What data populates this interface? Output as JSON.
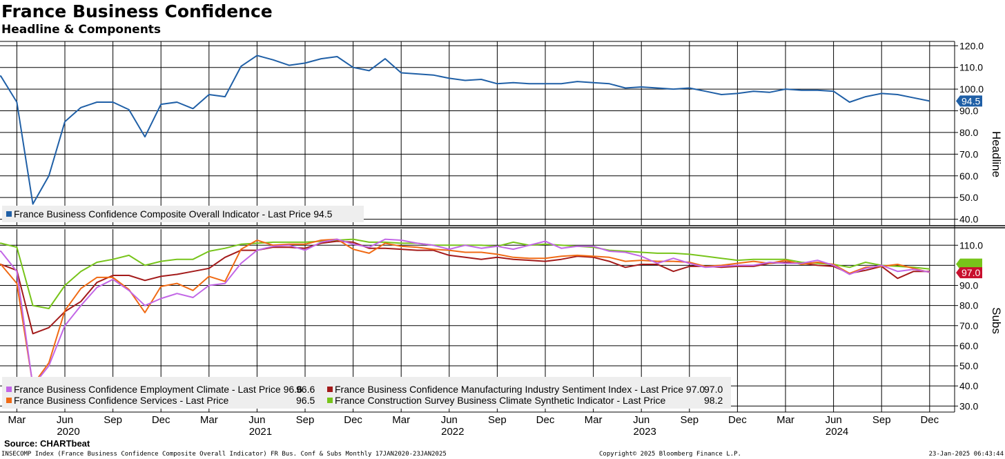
{
  "header": {
    "title": "France Business Confidence",
    "subtitle": "Headline & Components"
  },
  "footer": {
    "source": "Source: CHARTbeat",
    "query": "INSECOMP Index (France Business Confidence Composite Overall Indicator) FR Bus. Conf & Subs  Monthly 17JAN2020-23JAN2025",
    "copyright": "Copyright© 2025 Bloomberg Finance L.P.",
    "timestamp": "23-Jan-2025 06:43:44"
  },
  "chart_data": [
    {
      "type": "line",
      "axis_title": "Headline",
      "axis_side": "right",
      "ylim": [
        37,
        122
      ],
      "yticks": [
        40,
        50,
        60,
        70,
        80,
        90,
        100,
        110,
        120
      ],
      "grid": true,
      "legend": "bottom-left",
      "x": [
        "2020-01",
        "2020-02",
        "2020-03",
        "2020-04",
        "2020-05",
        "2020-06",
        "2020-07",
        "2020-08",
        "2020-09",
        "2020-10",
        "2020-11",
        "2020-12",
        "2021-01",
        "2021-02",
        "2021-03",
        "2021-04",
        "2021-05",
        "2021-06",
        "2021-07",
        "2021-08",
        "2021-09",
        "2021-10",
        "2021-11",
        "2021-12",
        "2022-01",
        "2022-02",
        "2022-03",
        "2022-04",
        "2022-05",
        "2022-06",
        "2022-07",
        "2022-08",
        "2022-09",
        "2022-10",
        "2022-11",
        "2022-12",
        "2023-01",
        "2023-02",
        "2023-03",
        "2023-04",
        "2023-05",
        "2023-06",
        "2023-07",
        "2023-08",
        "2023-09",
        "2023-10",
        "2023-11",
        "2023-12",
        "2024-01",
        "2024-02",
        "2024-03",
        "2024-04",
        "2024-05",
        "2024-06",
        "2024-07",
        "2024-08",
        "2024-09",
        "2024-10",
        "2024-11",
        "2024-12"
      ],
      "series": [
        {
          "name": "France Business Confidence Composite Overall Indicator",
          "last_price_label": "Last Price 94.5",
          "last_value": "94.5",
          "color": "#1f5fa6",
          "values": [
            106.5,
            106.0,
            94.0,
            47.0,
            60.0,
            85.0,
            91.5,
            94.0,
            94.0,
            90.5,
            78.0,
            93.0,
            94.0,
            91.0,
            97.5,
            96.5,
            110.5,
            115.5,
            113.5,
            111.0,
            112.0,
            114.0,
            115.0,
            110.0,
            108.5,
            114.0,
            107.5,
            107.0,
            106.5,
            105.0,
            104.0,
            104.5,
            102.5,
            103.0,
            102.5,
            102.5,
            102.5,
            103.5,
            103.0,
            102.5,
            100.5,
            101.0,
            100.5,
            100.0,
            100.5,
            99.0,
            97.5,
            98.0,
            99.0,
            98.5,
            100.0,
            99.5,
            99.5,
            99.0,
            94.0,
            96.5,
            98.0,
            97.5,
            96.0,
            94.5
          ]
        }
      ]
    },
    {
      "type": "line",
      "axis_title": "Subs",
      "axis_side": "right",
      "ylim": [
        27,
        118
      ],
      "yticks": [
        30,
        40,
        50,
        60,
        70,
        80,
        90,
        110
      ],
      "grid": true,
      "legend": "bottom-left",
      "x_axis_labels": [
        "Mar",
        "Jun",
        "Sep",
        "Dec",
        "Mar",
        "Jun",
        "Sep",
        "Dec",
        "Mar",
        "Jun",
        "Sep",
        "Dec",
        "Mar",
        "Jun",
        "Sep",
        "Dec",
        "Mar",
        "Jun",
        "Sep",
        "Dec"
      ],
      "x_axis_years": [
        "2020",
        "2021",
        "2022",
        "2023",
        "2024"
      ],
      "flag_value": "97.0",
      "series": [
        {
          "name": "France Business Confidence Employment Climate",
          "last_price_label": "Last Price 96.6",
          "last_value": "96.6",
          "color": "#c266e6",
          "values": [
            107.0,
            107.0,
            97.0,
            40.0,
            50.0,
            70.0,
            80.0,
            89.0,
            93.0,
            87.5,
            80.0,
            83.5,
            86.0,
            84.0,
            90.0,
            91.0,
            101.0,
            107.5,
            109.5,
            110.0,
            107.5,
            111.5,
            113.0,
            110.5,
            109.0,
            113.0,
            112.5,
            111.0,
            110.0,
            108.0,
            110.0,
            108.5,
            109.5,
            108.0,
            110.0,
            112.0,
            108.5,
            109.5,
            109.5,
            107.0,
            106.5,
            104.5,
            101.0,
            103.5,
            101.0,
            99.0,
            99.5,
            100.0,
            100.0,
            101.5,
            101.0,
            101.0,
            102.5,
            100.0,
            95.5,
            98.5,
            100.0,
            97.0,
            98.0,
            96.6
          ]
        },
        {
          "name": "France Business Confidence Manufacturing Industry Sentiment Index",
          "last_price_label": "Last Price 97.0",
          "last_value": "97.0",
          "color": "#a31a1a",
          "values": [
            102.0,
            100.5,
            97.5,
            66.0,
            69.0,
            77.0,
            82.0,
            91.5,
            95.0,
            95.0,
            92.5,
            94.5,
            95.5,
            97.0,
            98.5,
            104.0,
            107.5,
            107.5,
            109.0,
            109.0,
            108.5,
            111.0,
            112.0,
            111.5,
            108.5,
            108.5,
            108.0,
            107.5,
            107.5,
            105.0,
            104.0,
            103.0,
            104.0,
            103.0,
            102.5,
            102.0,
            103.0,
            104.5,
            104.0,
            102.0,
            99.0,
            100.5,
            100.5,
            97.0,
            99.5,
            99.5,
            99.0,
            99.5,
            99.5,
            101.0,
            101.5,
            101.0,
            100.0,
            99.5,
            96.0,
            97.5,
            99.5,
            93.5,
            97.0,
            97.0
          ]
        },
        {
          "name": "France Business Confidence Services",
          "last_price_label": "Last Price",
          "last_value": "96.5",
          "color": "#f06a14",
          "values": [
            101.5,
            100.5,
            91.0,
            40.5,
            51.5,
            77.5,
            88.5,
            94.0,
            94.0,
            88.0,
            76.5,
            89.5,
            91.0,
            87.5,
            94.5,
            92.0,
            108.0,
            112.5,
            110.0,
            110.5,
            110.5,
            112.5,
            113.0,
            108.0,
            106.0,
            111.0,
            109.5,
            109.0,
            108.0,
            107.5,
            106.5,
            106.5,
            105.5,
            104.0,
            103.5,
            103.5,
            104.5,
            105.0,
            104.5,
            104.0,
            102.0,
            102.5,
            102.0,
            102.0,
            101.5,
            99.5,
            100.0,
            101.0,
            102.0,
            101.0,
            102.5,
            100.5,
            101.5,
            100.5,
            96.0,
            99.0,
            99.5,
            100.5,
            98.5,
            96.5
          ]
        },
        {
          "name": "France Construction Survey Business Climate Synthetic Indicator",
          "last_price_label": "Last Price",
          "last_value": "98.2",
          "color": "#77c41a",
          "values": [
            110.0,
            111.0,
            109.0,
            80.0,
            78.5,
            90.0,
            97.0,
            101.5,
            103.0,
            105.0,
            100.0,
            102.0,
            103.0,
            103.0,
            107.0,
            108.5,
            110.5,
            111.0,
            111.5,
            111.5,
            111.5,
            112.0,
            112.5,
            113.0,
            111.5,
            111.5,
            111.0,
            111.0,
            110.0,
            110.0,
            110.0,
            110.0,
            109.5,
            111.5,
            110.0,
            110.5,
            110.0,
            109.5,
            109.0,
            107.5,
            107.0,
            106.5,
            106.0,
            106.0,
            105.5,
            104.5,
            103.5,
            102.5,
            103.0,
            103.0,
            103.0,
            101.5,
            101.0,
            100.5,
            99.0,
            101.5,
            100.0,
            99.5,
            99.0,
            98.2
          ]
        }
      ]
    }
  ]
}
